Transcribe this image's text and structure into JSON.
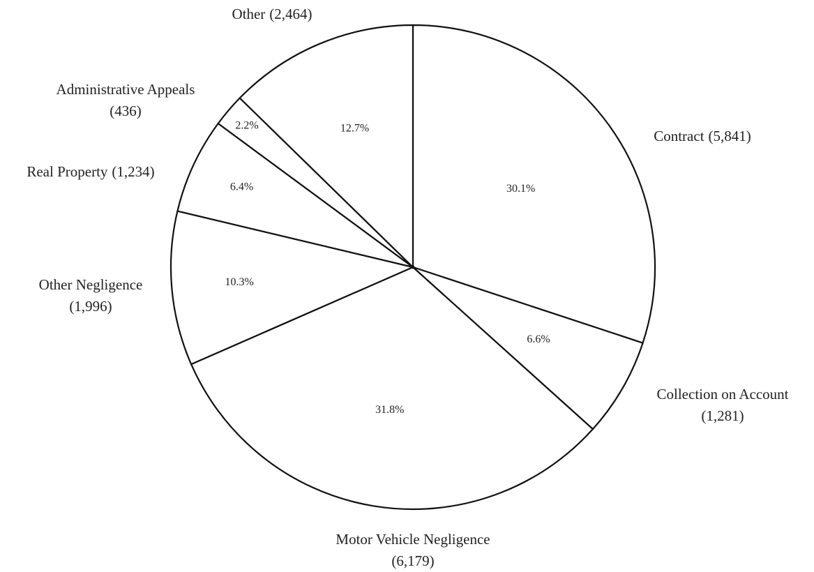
{
  "chart_data": {
    "type": "pie",
    "categories": [
      "Contract",
      "Collection on Account",
      "Motor Vehicle Negligence",
      "Other Negligence",
      "Real Property",
      "Administrative Appeals",
      "Other"
    ],
    "values": [
      30.1,
      6.6,
      31.8,
      10.3,
      6.4,
      2.2,
      12.7
    ],
    "value_labels": [
      "30.1%",
      "6.6%",
      "31.8%",
      "10.3%",
      "6.4%",
      "2.2%",
      "12.7%"
    ],
    "count_labels": [
      "(5,841)",
      "(1,281)",
      "(6,179)",
      "(1,996)",
      "(1,234)",
      "(436)",
      "(2,464)"
    ],
    "color": "#ffffff",
    "edge_color": "#111111"
  }
}
